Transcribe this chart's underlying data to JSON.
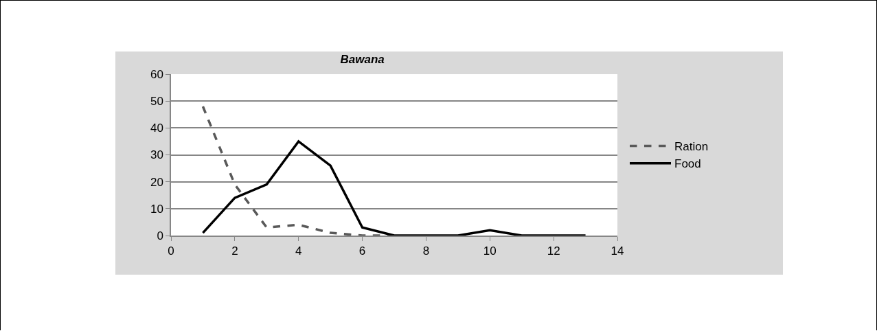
{
  "chart_data": {
    "type": "line",
    "title": "Bawana",
    "x": [
      1,
      2,
      3,
      4,
      5,
      6,
      7,
      8,
      9,
      10,
      11,
      12,
      13
    ],
    "series": [
      {
        "name": "Ration",
        "color": "#595959",
        "line_style": "dashed",
        "values": [
          48,
          19,
          3,
          4,
          1,
          0,
          0,
          null,
          null,
          null,
          null,
          null,
          null
        ]
      },
      {
        "name": "Food",
        "color": "#000000",
        "line_style": "solid",
        "values": [
          1,
          14,
          19,
          35,
          26,
          3,
          0,
          0,
          0,
          2,
          0,
          0,
          0
        ]
      }
    ],
    "xlim": [
      0,
      14
    ],
    "xticks": [
      0,
      2,
      4,
      6,
      8,
      10,
      12,
      14
    ],
    "ylim": [
      0,
      60
    ],
    "yticks": [
      0,
      10,
      20,
      30,
      40,
      50,
      60
    ],
    "grid": "y",
    "legend": "right",
    "marker": "none"
  }
}
